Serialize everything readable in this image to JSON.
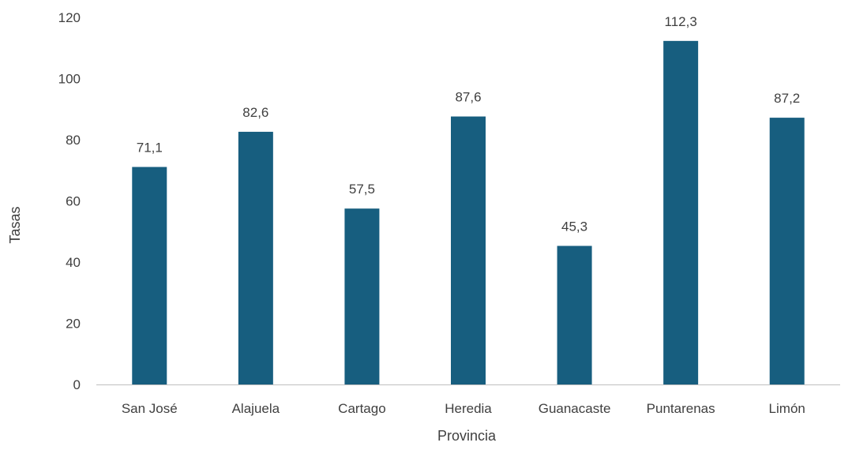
{
  "chart_data": {
    "type": "bar",
    "categories": [
      "San José",
      "Alajuela",
      "Cartago",
      "Heredia",
      "Guanacaste",
      "Puntarenas",
      "Limón"
    ],
    "values": [
      71.1,
      82.6,
      57.5,
      87.6,
      45.3,
      112.3,
      87.2
    ],
    "data_labels": [
      "71,1",
      "82,6",
      "57,5",
      "87,6",
      "45,3",
      "112,3",
      "87,2"
    ],
    "title": "",
    "xlabel": "Provincia",
    "ylabel": "Tasas",
    "ylim": [
      0,
      120
    ],
    "yticks": [
      0,
      20,
      40,
      60,
      80,
      100,
      120
    ],
    "grid": false,
    "legend": "none",
    "bar_color": "#175e7f",
    "axis_color": "#bfbfbf",
    "text_color": "#404040"
  }
}
